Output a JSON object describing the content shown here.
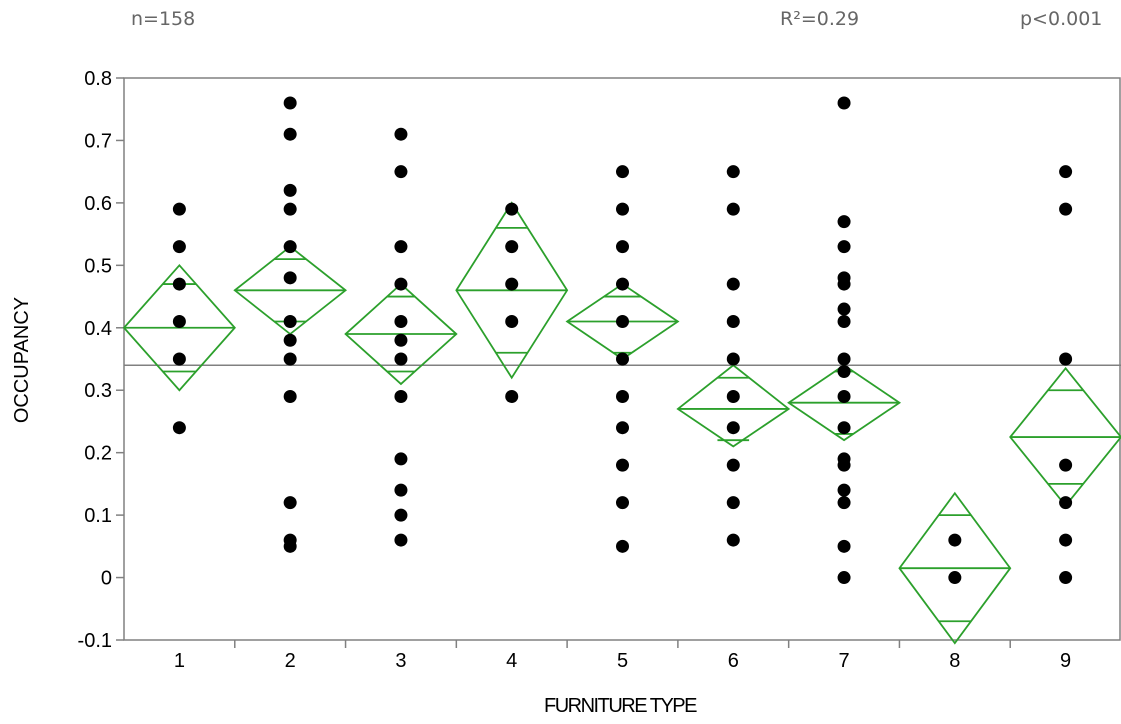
{
  "header": {
    "n_label": "n=158",
    "r2_label": "R²=0.29",
    "p_label": "p<0.001"
  },
  "chart_data": {
    "type": "scatter",
    "title": "",
    "xlabel": "FURNITURE TYPE",
    "ylabel": "OCCUPANCY",
    "categories": [
      "1",
      "2",
      "3",
      "4",
      "5",
      "6",
      "7",
      "8",
      "9"
    ],
    "ylim": [
      -0.1,
      0.8
    ],
    "yticks": [
      "-0.1",
      "0",
      "0.1",
      "0.2",
      "0.3",
      "0.4",
      "0.5",
      "0.6",
      "0.7",
      "0.8"
    ],
    "grand_mean": 0.34,
    "marker_color": "#000000",
    "diamond_color": "#2ca02c",
    "reference_line_color": "#808080",
    "points": [
      [
        0.59,
        0.53,
        0.47,
        0.41,
        0.35,
        0.24
      ],
      [
        0.76,
        0.71,
        0.62,
        0.59,
        0.53,
        0.48,
        0.41,
        0.38,
        0.35,
        0.29,
        0.12,
        0.06,
        0.05
      ],
      [
        0.71,
        0.65,
        0.53,
        0.47,
        0.41,
        0.38,
        0.35,
        0.29,
        0.19,
        0.14,
        0.1,
        0.06
      ],
      [
        0.59,
        0.53,
        0.47,
        0.41,
        0.29
      ],
      [
        0.65,
        0.59,
        0.53,
        0.47,
        0.41,
        0.35,
        0.29,
        0.24,
        0.18,
        0.12,
        0.05
      ],
      [
        0.65,
        0.59,
        0.47,
        0.41,
        0.35,
        0.29,
        0.24,
        0.18,
        0.12,
        0.06
      ],
      [
        0.76,
        0.57,
        0.53,
        0.48,
        0.47,
        0.43,
        0.41,
        0.35,
        0.33,
        0.29,
        0.24,
        0.19,
        0.18,
        0.14,
        0.12,
        0.05,
        0.0
      ],
      [
        0.06,
        0.0
      ],
      [
        0.65,
        0.59,
        0.35,
        0.18,
        0.12,
        0.06,
        0.0
      ]
    ],
    "means_diamonds": [
      {
        "category": "1",
        "mean": 0.4,
        "upper": 0.5,
        "lower": 0.3,
        "overlap_upper": 0.47,
        "overlap_lower": 0.33
      },
      {
        "category": "2",
        "mean": 0.46,
        "upper": 0.53,
        "lower": 0.39,
        "overlap_upper": 0.51,
        "overlap_lower": 0.41
      },
      {
        "category": "3",
        "mean": 0.39,
        "upper": 0.47,
        "lower": 0.31,
        "overlap_upper": 0.45,
        "overlap_lower": 0.33
      },
      {
        "category": "4",
        "mean": 0.46,
        "upper": 0.6,
        "lower": 0.32,
        "overlap_upper": 0.56,
        "overlap_lower": 0.36
      },
      {
        "category": "5",
        "mean": 0.41,
        "upper": 0.47,
        "lower": 0.35,
        "overlap_upper": 0.45,
        "overlap_lower": 0.36
      },
      {
        "category": "6",
        "mean": 0.27,
        "upper": 0.34,
        "lower": 0.21,
        "overlap_upper": 0.32,
        "overlap_lower": 0.22
      },
      {
        "category": "7",
        "mean": 0.28,
        "upper": 0.34,
        "lower": 0.22,
        "overlap_upper": 0.33,
        "overlap_lower": 0.23
      },
      {
        "category": "8",
        "mean": 0.015,
        "upper": 0.135,
        "lower": -0.105,
        "overlap_upper": 0.1,
        "overlap_lower": -0.07
      },
      {
        "category": "9",
        "mean": 0.225,
        "upper": 0.335,
        "lower": 0.115,
        "overlap_upper": 0.3,
        "overlap_lower": 0.15
      }
    ]
  }
}
